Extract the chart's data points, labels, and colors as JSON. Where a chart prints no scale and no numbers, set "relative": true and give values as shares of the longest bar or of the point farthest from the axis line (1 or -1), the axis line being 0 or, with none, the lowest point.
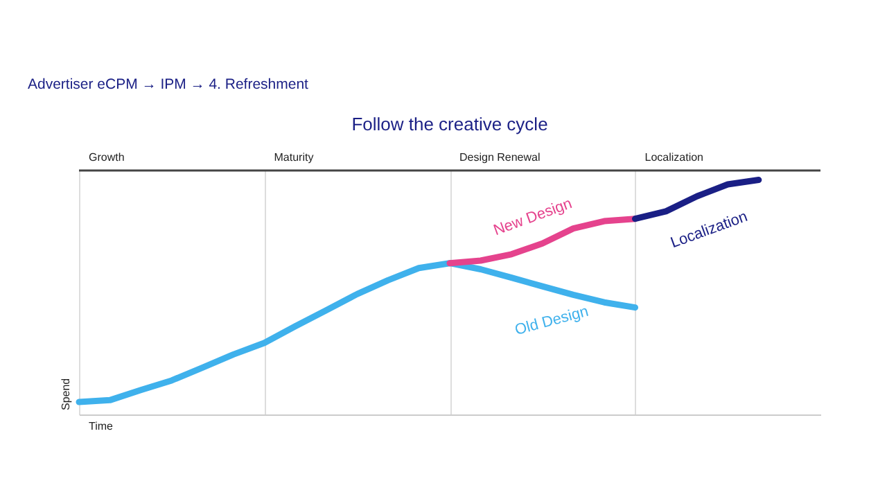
{
  "chart_data": {
    "type": "line",
    "relative": true,
    "title": "Follow the creative cycle",
    "annotations": [
      "Advertiser eCPM → IPM → 4. Refreshment",
      "Growth",
      "Maturity",
      "Design Renewal",
      "Localization"
    ],
    "xlabel": "Time",
    "ylabel": "Spend",
    "grid": "x",
    "categories": [
      null,
      null,
      null,
      null,
      null,
      null,
      null,
      null,
      null,
      null,
      null,
      null,
      null,
      null,
      null,
      null,
      null,
      null,
      null,
      null,
      null,
      null,
      null,
      null,
      null
    ],
    "series": [
      {
        "name": "Old Design",
        "color": "#3fb1ec",
        "values": [
          0.053,
          0.061,
          0.104,
          0.145,
          0.2,
          0.256,
          0.305,
          0.376,
          0.444,
          0.513,
          0.572,
          0.624,
          0.645,
          0.619,
          0.583,
          0.546,
          0.51,
          0.478,
          0.456,
          null,
          null,
          null,
          null,
          null,
          null
        ]
      },
      {
        "name": "New Design",
        "color": "#e5438d",
        "values": [
          null,
          null,
          null,
          null,
          null,
          null,
          null,
          null,
          null,
          null,
          null,
          null,
          0.645,
          0.656,
          0.683,
          0.729,
          0.793,
          0.824,
          0.834,
          null,
          null,
          null,
          null,
          null,
          null
        ]
      },
      {
        "name": "Localization",
        "color": "#1a1f85",
        "values": [
          null,
          null,
          null,
          null,
          null,
          null,
          null,
          null,
          null,
          null,
          null,
          null,
          null,
          null,
          null,
          null,
          null,
          null,
          0.834,
          0.866,
          0.93,
          0.981,
          1.0,
          null,
          null
        ]
      }
    ]
  }
}
